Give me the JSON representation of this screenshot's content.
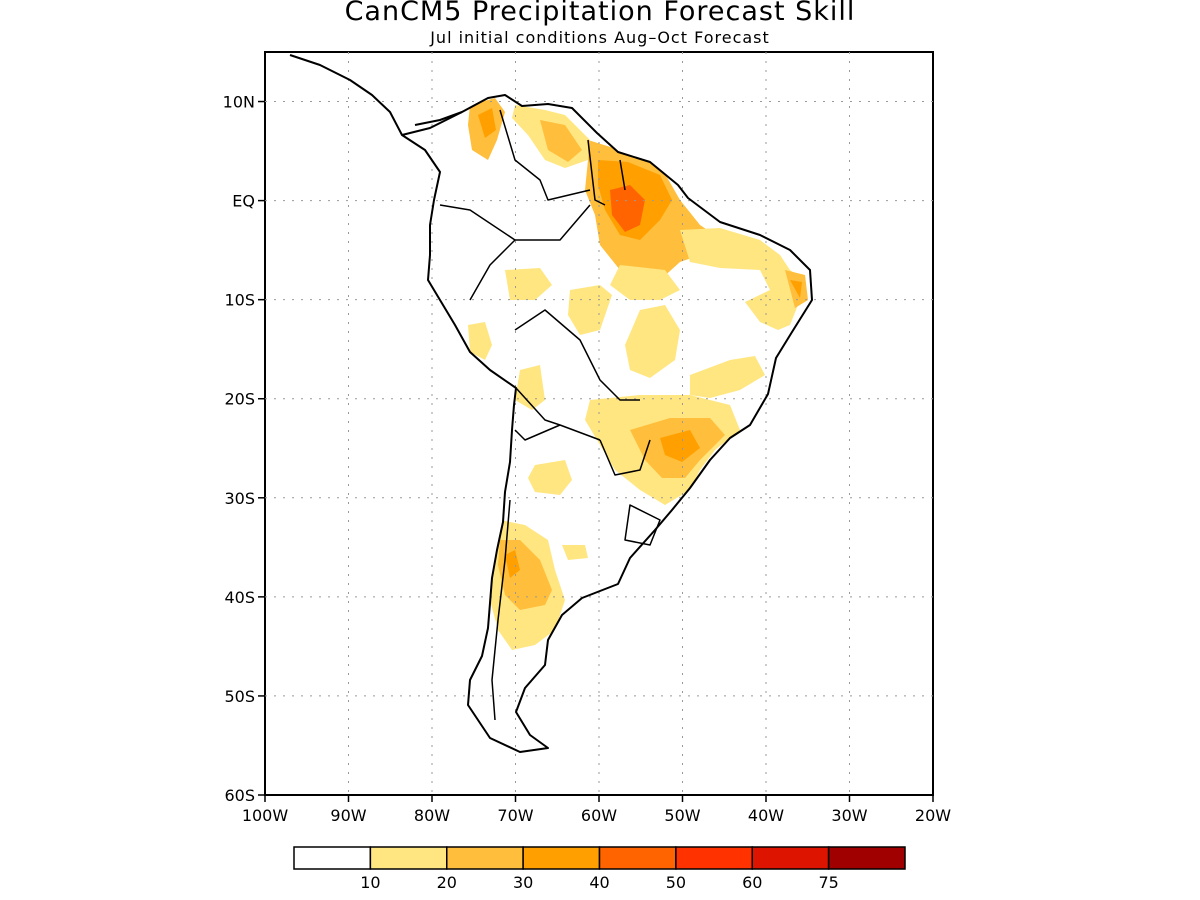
{
  "title": "CanCM5 Precipitation Forecast Skill",
  "subtitle": "Jul initial conditions  Aug–Oct Forecast",
  "map": {
    "lon_range": [
      -100,
      -20
    ],
    "lat_range": [
      -60,
      15
    ],
    "grid": true,
    "lat_ticks": [
      {
        "value": 10,
        "label": "10N"
      },
      {
        "value": 0,
        "label": "EQ"
      },
      {
        "value": -10,
        "label": "10S"
      },
      {
        "value": -20,
        "label": "20S"
      },
      {
        "value": -30,
        "label": "30S"
      },
      {
        "value": -40,
        "label": "40S"
      },
      {
        "value": -50,
        "label": "50S"
      },
      {
        "value": -60,
        "label": "60S"
      }
    ],
    "lon_ticks": [
      {
        "value": -100,
        "label": "100W"
      },
      {
        "value": -90,
        "label": "90W"
      },
      {
        "value": -80,
        "label": "80W"
      },
      {
        "value": -70,
        "label": "70W"
      },
      {
        "value": -60,
        "label": "60W"
      },
      {
        "value": -50,
        "label": "50W"
      },
      {
        "value": -40,
        "label": "40W"
      },
      {
        "value": -30,
        "label": "30W"
      },
      {
        "value": -20,
        "label": "20W"
      }
    ]
  },
  "colorbar": {
    "colors": [
      "#ffffff",
      "#ffe680",
      "#ffbe3c",
      "#ffa000",
      "#ff6400",
      "#ff3200",
      "#dc1400",
      "#a00000"
    ],
    "labels": [
      "10",
      "20",
      "30",
      "40",
      "50",
      "60",
      "75"
    ]
  }
}
